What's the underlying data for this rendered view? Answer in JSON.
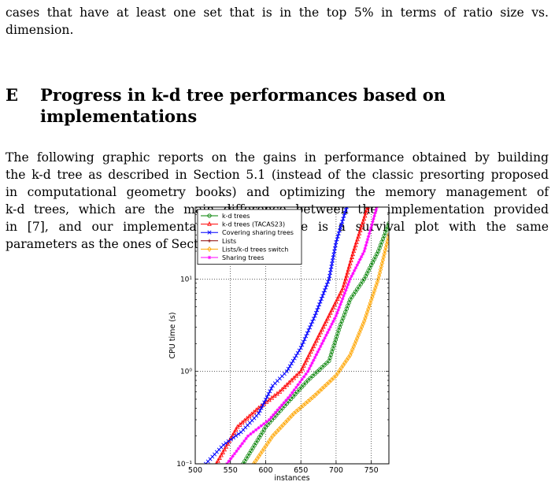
{
  "intro": {
    "lines": [
      "cases that have at least one set that is in the top 5% in terms of ratio size vs.",
      "dimension."
    ]
  },
  "section": {
    "number": "E",
    "title_line1": "Progress in k-d tree performances based on",
    "title_line2": "implementations"
  },
  "body": {
    "lines": [
      "The following graphic reports on the gains in performance obtained by building",
      "the k-d tree as described in Section 5.1 (instead of the classic presorting proposed",
      "in computational geometry books) and optimizing the memory management of",
      "k-d trees, which are the main difference between the implementation provided",
      "in [7], and our implementation. This figure is a survival plot with the same",
      "parameters as the ones of Section 6.1."
    ]
  },
  "chart_data": {
    "type": "line",
    "xlabel": "instances",
    "ylabel": "CPU time (s)",
    "xlim": [
      500,
      775
    ],
    "ylim": [
      0.1,
      60
    ],
    "yscale": "log",
    "xticks": [
      "500",
      "550",
      "600",
      "650",
      "700",
      "750"
    ],
    "yticks": [
      "10⁻¹",
      "10⁰",
      "10¹"
    ],
    "grid": true,
    "legend_position": "top-left",
    "series": [
      {
        "name": "k-d trees",
        "color": "#008000",
        "marker": "circle",
        "x": [
          568,
          600,
          630,
          660,
          690,
          705,
          720,
          740,
          760,
          775
        ],
        "y": [
          0.1,
          0.25,
          0.45,
          0.8,
          1.3,
          3,
          6,
          10,
          20,
          40
        ]
      },
      {
        "name": "k-d trees (TACAS23)",
        "color": "#ff0000",
        "marker": "triangle",
        "x": [
          530,
          560,
          590,
          620,
          650,
          670,
          690,
          710,
          725,
          745
        ],
        "y": [
          0.1,
          0.25,
          0.4,
          0.6,
          1.0,
          2.0,
          4.0,
          8.0,
          20,
          60
        ]
      },
      {
        "name": "Covering sharing trees",
        "color": "#0000ff",
        "marker": "x",
        "x": [
          515,
          540,
          565,
          590,
          610,
          630,
          650,
          670,
          690,
          700,
          715
        ],
        "y": [
          0.1,
          0.16,
          0.22,
          0.35,
          0.7,
          1.0,
          1.8,
          4.0,
          10,
          25,
          60
        ]
      },
      {
        "name": "Lists",
        "color": "#8b0000",
        "marker": "plus",
        "x": [],
        "y": []
      },
      {
        "name": "Lists/k-d trees switch",
        "color": "#ffa500",
        "marker": "diamond",
        "x": [
          583,
          610,
          640,
          670,
          700,
          720,
          740,
          760,
          775
        ],
        "y": [
          0.1,
          0.2,
          0.35,
          0.55,
          0.9,
          1.5,
          3.5,
          10,
          30
        ]
      },
      {
        "name": "Sharing trees",
        "color": "#ff00ff",
        "marker": "star",
        "x": [
          545,
          575,
          605,
          635,
          660,
          680,
          700,
          720,
          740,
          758
        ],
        "y": [
          0.1,
          0.2,
          0.3,
          0.55,
          1.0,
          2.0,
          4.0,
          10,
          20,
          60
        ]
      }
    ]
  }
}
